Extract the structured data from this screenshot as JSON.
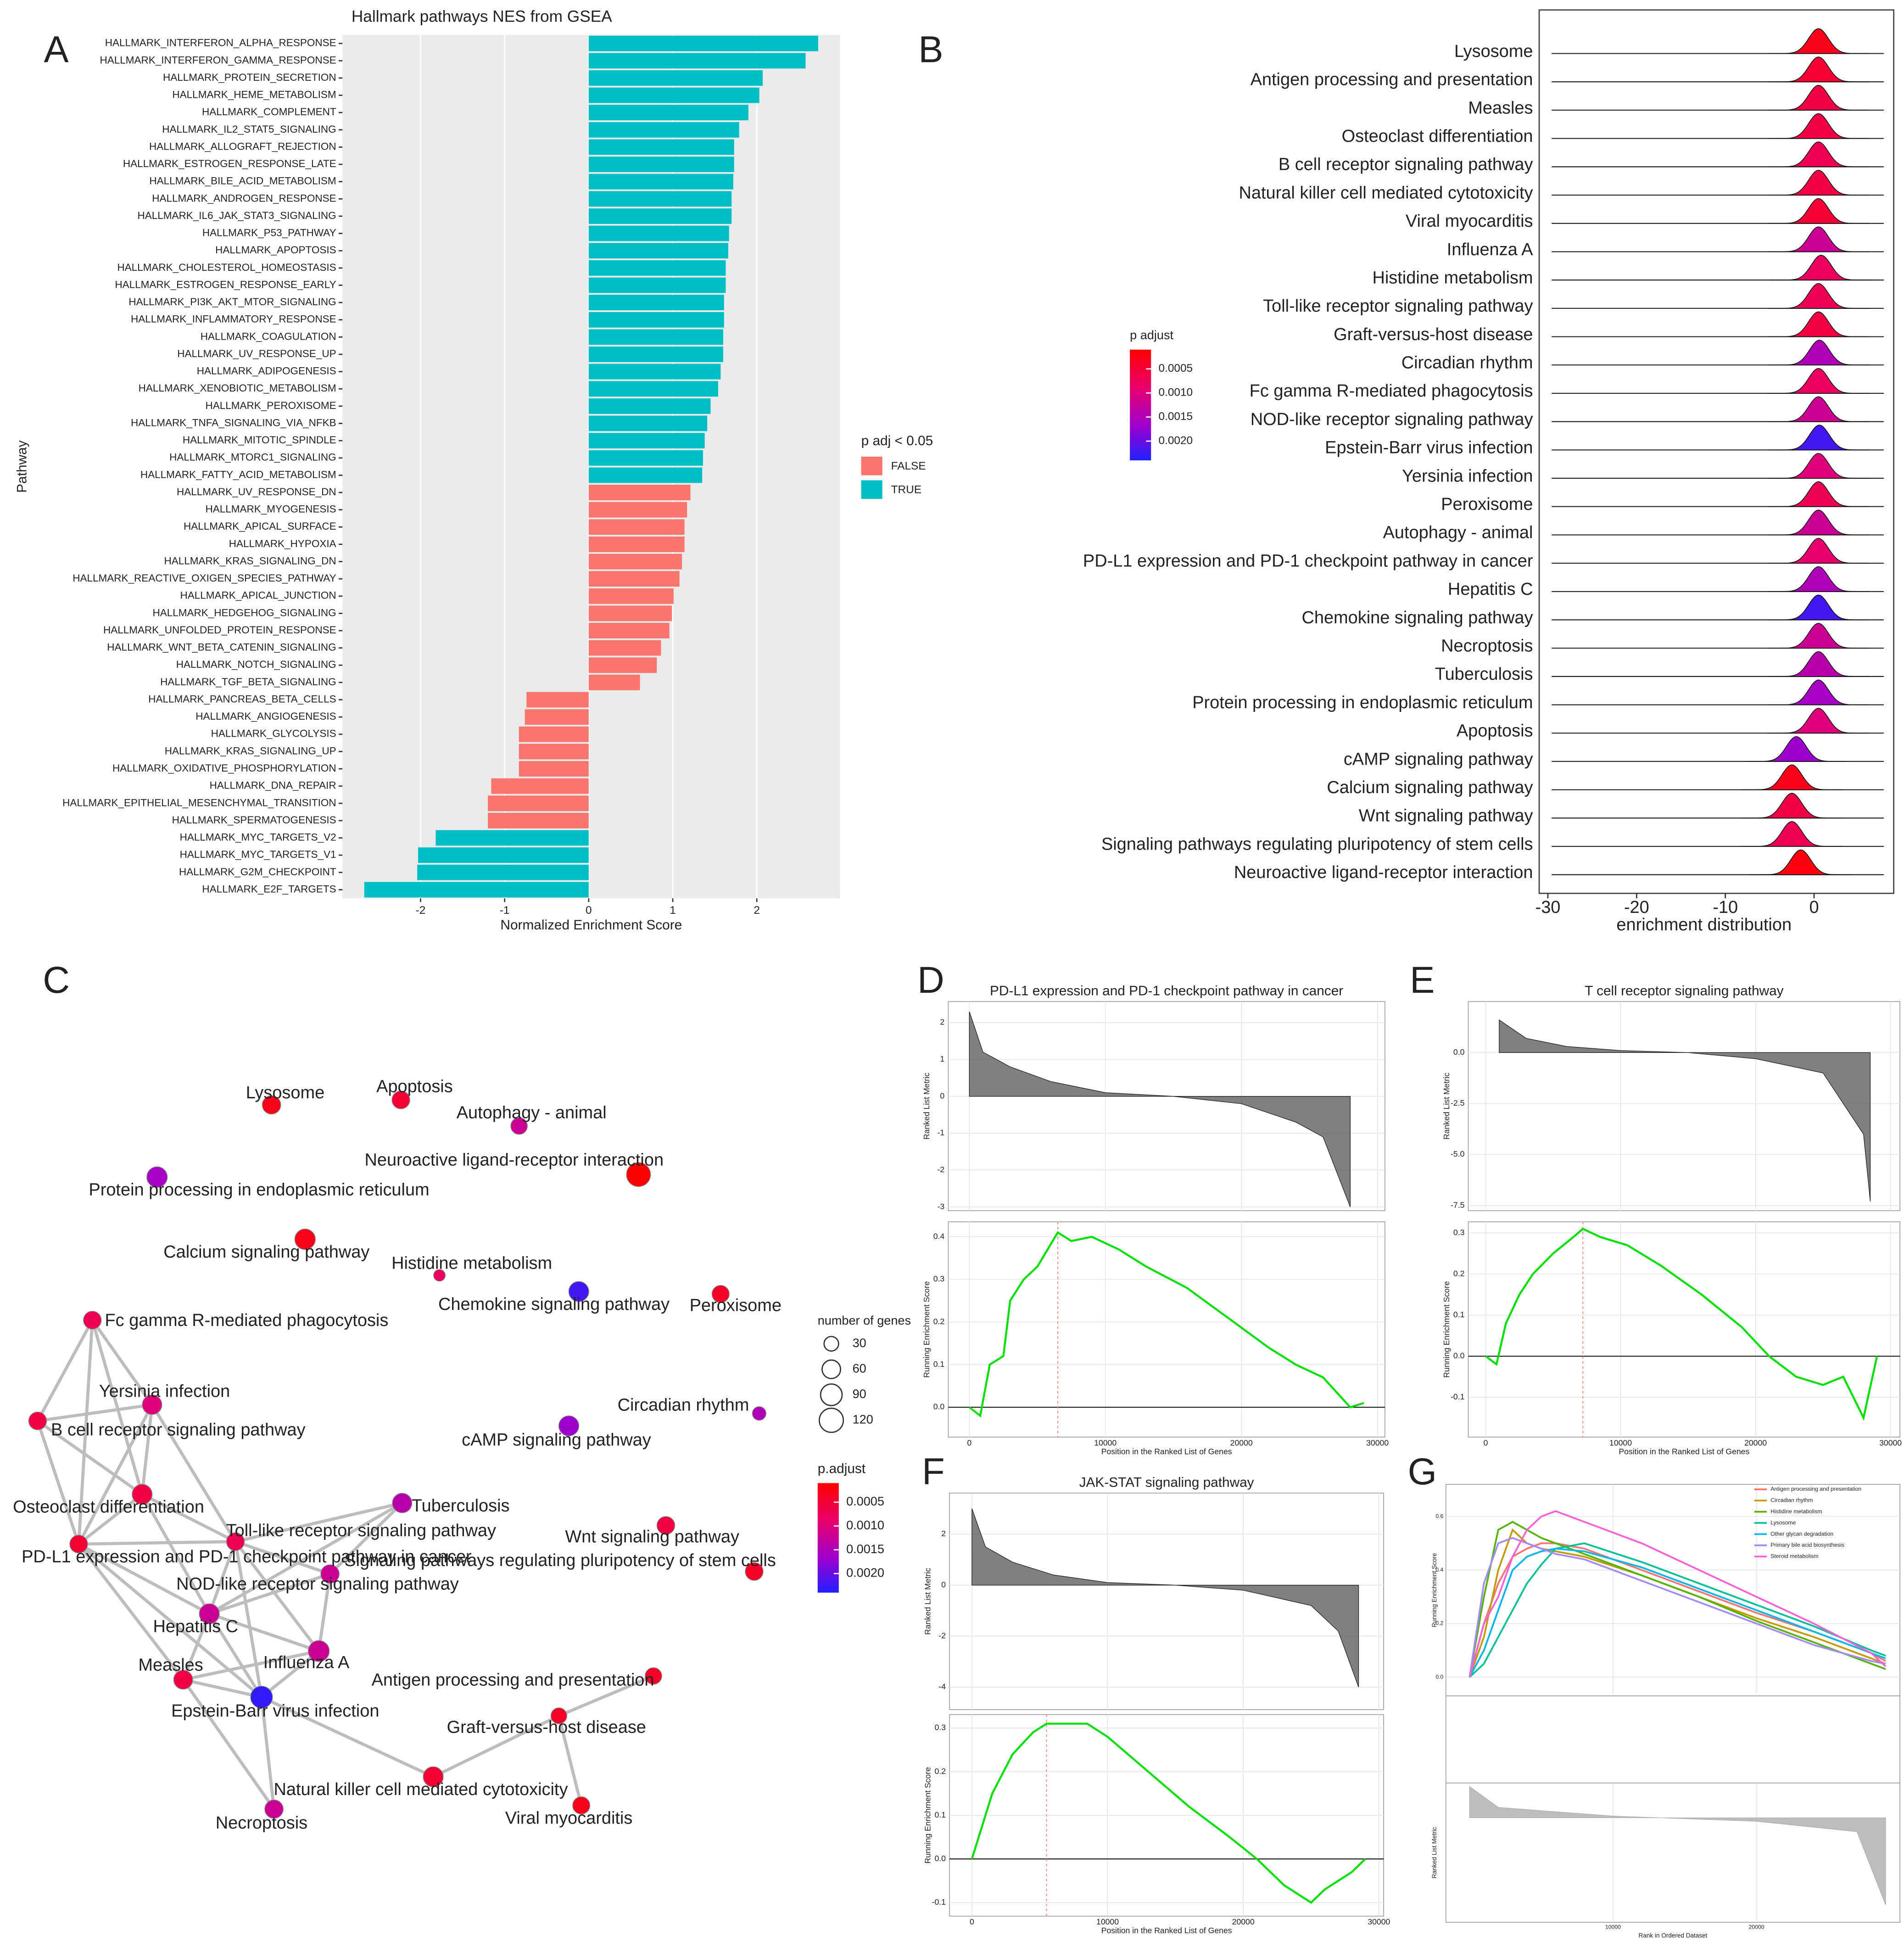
{
  "chart_data": [
    {
      "type": "bar",
      "panel": "A",
      "title": "Hallmark pathways NES from GSEA",
      "xlabel": "Normalized Enrichment Score",
      "ylabel": "Pathway",
      "legend_title": "p adj < 0.05",
      "legend": "right",
      "grid": true,
      "categories": [
        "HALLMARK_INTERFERON_ALPHA_RESPONSE",
        "HALLMARK_INTERFERON_GAMMA_RESPONSE",
        "HALLMARK_PROTEIN_SECRETION",
        "HALLMARK_HEME_METABOLISM",
        "HALLMARK_COMPLEMENT",
        "HALLMARK_IL2_STAT5_SIGNALING",
        "HALLMARK_ALLOGRAFT_REJECTION",
        "HALLMARK_ESTROGEN_RESPONSE_LATE",
        "HALLMARK_BILE_ACID_METABOLISM",
        "HALLMARK_ANDROGEN_RESPONSE",
        "HALLMARK_IL6_JAK_STAT3_SIGNALING",
        "HALLMARK_P53_PATHWAY",
        "HALLMARK_APOPTOSIS",
        "HALLMARK_CHOLESTEROL_HOMEOSTASIS",
        "HALLMARK_ESTROGEN_RESPONSE_EARLY",
        "HALLMARK_PI3K_AKT_MTOR_SIGNALING",
        "HALLMARK_INFLAMMATORY_RESPONSE",
        "HALLMARK_COAGULATION",
        "HALLMARK_UV_RESPONSE_UP",
        "HALLMARK_ADIPOGENESIS",
        "HALLMARK_XENOBIOTIC_METABOLISM",
        "HALLMARK_PEROXISOME",
        "HALLMARK_TNFA_SIGNALING_VIA_NFKB",
        "HALLMARK_MITOTIC_SPINDLE",
        "HALLMARK_MTORC1_SIGNALING",
        "HALLMARK_FATTY_ACID_METABOLISM",
        "HALLMARK_UV_RESPONSE_DN",
        "HALLMARK_MYOGENESIS",
        "HALLMARK_APICAL_SURFACE",
        "HALLMARK_HYPOXIA",
        "HALLMARK_KRAS_SIGNALING_DN",
        "HALLMARK_REACTIVE_OXIGEN_SPECIES_PATHWAY",
        "HALLMARK_APICAL_JUNCTION",
        "HALLMARK_HEDGEHOG_SIGNALING",
        "HALLMARK_UNFOLDED_PROTEIN_RESPONSE",
        "HALLMARK_WNT_BETA_CATENIN_SIGNALING",
        "HALLMARK_NOTCH_SIGNALING",
        "HALLMARK_TGF_BETA_SIGNALING",
        "HALLMARK_PANCREAS_BETA_CELLS",
        "HALLMARK_ANGIOGENESIS",
        "HALLMARK_GLYCOLYSIS",
        "HALLMARK_KRAS_SIGNALING_UP",
        "HALLMARK_OXIDATIVE_PHOSPHORYLATION",
        "HALLMARK_DNA_REPAIR",
        "HALLMARK_EPITHELIAL_MESENCHYMAL_TRANSITION",
        "HALLMARK_SPERMATOGENESIS",
        "HALLMARK_MYC_TARGETS_V2",
        "HALLMARK_MYC_TARGETS_V1",
        "HALLMARK_G2M_CHECKPOINT",
        "HALLMARK_E2F_TARGETS"
      ],
      "series": [
        {
          "name": "FALSE",
          "color": "#f8766d",
          "values": [
            null,
            null,
            null,
            null,
            null,
            null,
            null,
            null,
            null,
            null,
            null,
            null,
            null,
            null,
            null,
            null,
            null,
            null,
            null,
            null,
            null,
            null,
            null,
            null,
            null,
            null,
            1.21,
            1.17,
            1.14,
            1.14,
            1.11,
            1.08,
            1.01,
            0.99,
            0.96,
            0.86,
            0.81,
            0.61,
            -0.74,
            -0.76,
            -0.83,
            -0.83,
            -0.83,
            -1.16,
            -1.2,
            -1.2,
            null,
            null,
            null,
            null
          ]
        },
        {
          "name": "TRUE",
          "color": "#00bfc4",
          "values": [
            2.73,
            2.58,
            2.07,
            2.03,
            1.9,
            1.79,
            1.73,
            1.73,
            1.72,
            1.7,
            1.7,
            1.67,
            1.66,
            1.63,
            1.63,
            1.61,
            1.61,
            1.6,
            1.6,
            1.57,
            1.54,
            1.45,
            1.41,
            1.38,
            1.36,
            1.35,
            null,
            null,
            null,
            null,
            null,
            null,
            null,
            null,
            null,
            null,
            null,
            null,
            null,
            null,
            null,
            null,
            null,
            null,
            null,
            null,
            -1.82,
            -2.03,
            -2.04,
            -2.67
          ]
        }
      ],
      "xlim": [
        -2.93,
        2.99
      ],
      "xticks": [
        -2,
        -1,
        0,
        1,
        2
      ]
    },
    {
      "type": "ridge",
      "panel": "B",
      "xlabel": "enrichment distribution",
      "colorbar_title": "p adjust",
      "categories": [
        "Lysosome",
        "Antigen processing and presentation",
        "Measles",
        "Osteoclast differentiation",
        "B cell receptor signaling pathway",
        "Natural killer cell mediated cytotoxicity",
        "Viral myocarditis",
        "Influenza A",
        "Histidine metabolism",
        "Toll-like receptor signaling pathway",
        "Graft-versus-host disease",
        "Circadian rhythm",
        "Fc gamma R-mediated phagocytosis",
        "NOD-like receptor signaling pathway",
        "Epstein-Barr virus infection",
        "Yersinia infection",
        "Peroxisome",
        "Autophagy - animal",
        "PD-L1 expression and PD-1 checkpoint pathway in cancer",
        "Hepatitis C",
        "Chemokine signaling pathway",
        "Necroptosis",
        "Tuberculosis",
        "Protein processing in endoplasmic reticulum",
        "Apoptosis",
        "cAMP signaling pathway",
        "Calcium signaling pathway",
        "Wnt signaling pathway",
        "Signaling pathways regulating pluripotency of stem cells",
        "Neuroactive ligand-receptor interaction"
      ],
      "values": [
        0.5,
        0.5,
        0.5,
        0.5,
        0.5,
        0.5,
        0.5,
        0.5,
        0.8,
        0.5,
        0.5,
        0.6,
        0.5,
        0.5,
        0.6,
        0.5,
        0.5,
        0.5,
        0.5,
        0.5,
        0.5,
        0.5,
        0.5,
        0.5,
        0.5,
        -2,
        -2.5,
        -2.5,
        -2.5,
        -1.5
      ],
      "p_adjust": [
        0.0003,
        0.0005,
        0.0006,
        0.0006,
        0.0007,
        0.0006,
        0.0005,
        0.0012,
        0.0008,
        0.0007,
        0.0006,
        0.0015,
        0.0008,
        0.0012,
        0.0022,
        0.001,
        0.0007,
        0.0012,
        0.0009,
        0.0015,
        0.0022,
        0.0012,
        0.0014,
        0.0016,
        0.001,
        0.0017,
        0.0003,
        0.0006,
        0.0007,
        0.0002
      ],
      "xlim": [
        -30.98,
        8.98
      ],
      "xticks": [
        -30,
        -20,
        -10,
        0
      ],
      "clim": [
        0.0001,
        0.0024
      ],
      "cticks": [
        0.0005,
        {
          "value": 0.001,
          "label": "0.0010"
        },
        0.0015,
        {
          "value": 0.002,
          "label": "0.0020"
        }
      ]
    },
    {
      "type": "network",
      "panel": "C",
      "size_legend_title": "number of genes",
      "size_ticks": [
        30,
        60,
        90,
        120
      ],
      "colorbar_title": "p.adjust",
      "clim": [
        0.0001,
        0.0024
      ],
      "cticks": [
        0.0005,
        {
          "value": 0.001,
          "label": "0.0010"
        },
        0.0015,
        {
          "value": 0.002,
          "label": "0.0020"
        }
      ],
      "nodes": [
        {
          "label": "Lysosome",
          "size": 60,
          "p_adjust": 0.0003
        },
        {
          "label": "Apoptosis",
          "size": 55,
          "p_adjust": 0.0005
        },
        {
          "label": "Autophagy - animal",
          "size": 45,
          "p_adjust": 0.0012
        },
        {
          "label": "Neuroactive ligand-receptor interaction",
          "size": 120,
          "p_adjust": 0.0001
        },
        {
          "label": "Protein processing in endoplasmic reticulum",
          "size": 80,
          "p_adjust": 0.0016
        },
        {
          "label": "Calcium signaling pathway",
          "size": 80,
          "p_adjust": 0.0003
        },
        {
          "label": "Histidine metabolism",
          "size": 15,
          "p_adjust": 0.0008
        },
        {
          "label": "Chemokine signaling pathway",
          "size": 75,
          "p_adjust": 0.0022
        },
        {
          "label": "Peroxisome",
          "size": 50,
          "p_adjust": 0.0004
        },
        {
          "label": "Fc gamma R-mediated phagocytosis",
          "size": 55,
          "p_adjust": 0.0007
        },
        {
          "label": "Yersinia infection",
          "size": 70,
          "p_adjust": 0.001
        },
        {
          "label": "B cell receptor signaling pathway",
          "size": 55,
          "p_adjust": 0.0006
        },
        {
          "label": "Circadian rhythm",
          "size": 25,
          "p_adjust": 0.0015
        },
        {
          "label": "cAMP signaling pathway",
          "size": 75,
          "p_adjust": 0.0017
        },
        {
          "label": "Osteoclast differentiation",
          "size": 75,
          "p_adjust": 0.0006
        },
        {
          "label": "Tuberculosis",
          "size": 70,
          "p_adjust": 0.0014
        },
        {
          "label": "Toll-like receptor signaling pathway",
          "size": 55,
          "p_adjust": 0.0007
        },
        {
          "label": "Wnt signaling pathway",
          "size": 55,
          "p_adjust": 0.0006
        },
        {
          "label": "PD-L1 expression and PD-1 checkpoint pathway in cancer",
          "size": 55,
          "p_adjust": 0.0005
        },
        {
          "label": "Signaling pathways regulating pluripotency of stem cells",
          "size": 55,
          "p_adjust": 0.0004
        },
        {
          "label": "NOD-like receptor signaling pathway",
          "size": 60,
          "p_adjust": 0.0012
        },
        {
          "label": "Hepatitis C",
          "size": 75,
          "p_adjust": 0.0012
        },
        {
          "label": "Measles",
          "size": 65,
          "p_adjust": 0.0006
        },
        {
          "label": "Influenza A",
          "size": 85,
          "p_adjust": 0.0012
        },
        {
          "label": "Antigen processing and presentation",
          "size": 45,
          "p_adjust": 0.0004
        },
        {
          "label": "Epstein-Barr virus infection",
          "size": 95,
          "p_adjust": 0.0023
        },
        {
          "label": "Graft-versus-host disease",
          "size": 40,
          "p_adjust": 0.0004
        },
        {
          "label": "Natural killer cell mediated cytotoxicity",
          "size": 75,
          "p_adjust": 0.0005
        },
        {
          "label": "Necroptosis",
          "size": 60,
          "p_adjust": 0.0012
        },
        {
          "label": "Viral myocarditis",
          "size": 50,
          "p_adjust": 0.0003
        }
      ]
    },
    {
      "type": "gsea",
      "panel": "D",
      "title": "PD-L1 expression and PD-1 checkpoint pathway in cancer",
      "metric_label": "Ranked List Metric",
      "ylabel": "Running Enrichment Score",
      "xlabel": "Position in the Ranked List of Genes",
      "x": [
        0,
        800,
        1500,
        2500,
        3000,
        4000,
        5000,
        6500,
        7500,
        9000,
        11000,
        13000,
        16000,
        19000,
        22000,
        24000,
        26000,
        28000,
        29000
      ],
      "values": [
        0,
        -0.02,
        0.1,
        0.12,
        0.25,
        0.3,
        0.33,
        0.41,
        0.39,
        0.4,
        0.37,
        0.33,
        0.28,
        0.21,
        0.14,
        0.1,
        0.07,
        0,
        0.01
      ],
      "metric_x": [
        0,
        1000,
        3000,
        6000,
        10000,
        15000,
        20000,
        24000,
        26000,
        28000
      ],
      "metric_values": [
        2.3,
        1.2,
        0.8,
        0.4,
        0.1,
        0,
        -0.2,
        -0.7,
        -1.1,
        -3
      ],
      "xlim": [
        -1550,
        30550
      ],
      "xticks": [
        0,
        10000,
        20000,
        30000
      ],
      "ylim": [
        -0.07,
        0.435
      ],
      "yticks": [
        {
          "value": 0,
          "label": "0.0"
        },
        0.1,
        0.2,
        0.3,
        0.4
      ],
      "metric_ylim": [
        -3.1,
        2.57
      ],
      "metric_yticks": [
        -3,
        -2,
        -1,
        0,
        1,
        2
      ],
      "color": "#00e000"
    },
    {
      "type": "gsea",
      "panel": "E",
      "title": "T cell receptor signaling pathway",
      "metric_label": "Ranked List Metric",
      "ylabel": "Running Enrichment Score",
      "xlabel": "Position in the Ranked List of Genes",
      "x": [
        0,
        800,
        1500,
        2500,
        3500,
        5000,
        6500,
        7200,
        8500,
        10500,
        13000,
        16000,
        19000,
        21000,
        23000,
        25000,
        26500,
        28000,
        29000
      ],
      "values": [
        0,
        -0.02,
        0.08,
        0.15,
        0.2,
        0.25,
        0.29,
        0.31,
        0.29,
        0.27,
        0.22,
        0.15,
        0.07,
        0,
        -0.05,
        -0.07,
        -0.05,
        -0.15,
        0
      ],
      "metric_x": [
        1000,
        3000,
        6000,
        10000,
        15000,
        20000,
        25000,
        28000,
        28500
      ],
      "metric_values": [
        1.6,
        0.7,
        0.3,
        0.1,
        0,
        -0.3,
        -1,
        -4,
        -7.3
      ],
      "xlim": [
        -1290,
        30700
      ],
      "xticks": [
        0,
        10000,
        20000,
        30000
      ],
      "ylim": [
        -0.197,
        0.327
      ],
      "yticks": [
        -0.1,
        {
          "value": 0,
          "label": "0.0"
        },
        0.1,
        0.2,
        0.3
      ],
      "metric_ylim": [
        -7.75,
        2.5
      ],
      "metric_yticks": [
        {
          "value": -7.5,
          "label": "-7.5"
        },
        {
          "value": -5,
          "label": "-5.0"
        },
        {
          "value": -2.5,
          "label": "-2.5"
        },
        {
          "value": 0,
          "label": "0.0"
        }
      ],
      "color": "#00e000"
    },
    {
      "type": "gsea",
      "panel": "F",
      "title": "JAK-STAT signaling pathway",
      "metric_label": "Ranked List Metric",
      "ylabel": "Running Enrichment Score",
      "xlabel": "Position in the Ranked List of Genes",
      "x": [
        0,
        500,
        1500,
        3000,
        4500,
        5500,
        7000,
        8500,
        10000,
        13000,
        16000,
        19000,
        21000,
        23000,
        25000,
        26000,
        28000,
        29000
      ],
      "values": [
        0,
        0.05,
        0.15,
        0.24,
        0.29,
        0.31,
        0.31,
        0.31,
        0.28,
        0.2,
        0.12,
        0.05,
        0,
        -0.06,
        -0.1,
        -0.07,
        -0.03,
        0
      ],
      "metric_x": [
        0,
        1000,
        3000,
        6000,
        10000,
        15000,
        20000,
        25000,
        27000,
        28500
      ],
      "metric_values": [
        3,
        1.5,
        0.9,
        0.4,
        0.1,
        0,
        -0.2,
        -0.8,
        -1.8,
        -4
      ],
      "xlim": [
        -1650,
        30350
      ],
      "xticks": [
        0,
        10000,
        20000,
        30000
      ],
      "ylim": [
        -0.131,
        0.331
      ],
      "yticks": [
        -0.1,
        {
          "value": 0,
          "label": "0.0"
        },
        0.1,
        0.2,
        0.3
      ],
      "metric_ylim": [
        -4.88,
        3.61
      ],
      "metric_yticks": [
        -4,
        -2,
        0,
        2
      ],
      "color": "#00e000"
    },
    {
      "type": "gsea_multi",
      "panel": "G",
      "ylabel": "Running Enrichment Score",
      "metric_label": "Ranked List Metric",
      "xlabel": "Rank in Ordered Dataset",
      "legend": "top-right",
      "x": [
        0,
        1000,
        2000,
        3000,
        4000,
        5000,
        6000,
        8000,
        12000,
        16000,
        20000,
        24000,
        28000,
        29000
      ],
      "series": [
        {
          "name": "Antigen processing and presentation",
          "color": "#f8766d",
          "values": [
            0,
            0.2,
            0.35,
            0.45,
            0.48,
            0.5,
            0.5,
            0.48,
            0.4,
            0.32,
            0.24,
            0.17,
            0.09,
            0.06
          ]
        },
        {
          "name": "Circadian rhythm",
          "color": "#c49a00",
          "values": [
            0,
            0.15,
            0.4,
            0.55,
            0.5,
            0.48,
            0.47,
            0.45,
            0.38,
            0.3,
            0.22,
            0.15,
            0.07,
            0.05
          ]
        },
        {
          "name": "Histidine metabolism",
          "color": "#53b400",
          "values": [
            0,
            0.3,
            0.55,
            0.58,
            0.55,
            0.52,
            0.5,
            0.46,
            0.38,
            0.3,
            0.21,
            0.13,
            0.05,
            0.03
          ]
        },
        {
          "name": "Lysosome",
          "color": "#00c094",
          "values": [
            0,
            0.05,
            0.15,
            0.25,
            0.35,
            0.42,
            0.48,
            0.5,
            0.43,
            0.35,
            0.27,
            0.19,
            0.1,
            0.08
          ]
        },
        {
          "name": "Other glycan degradation",
          "color": "#00b6eb",
          "values": [
            0,
            0.1,
            0.25,
            0.4,
            0.45,
            0.47,
            0.48,
            0.47,
            0.41,
            0.33,
            0.25,
            0.17,
            0.09,
            0.07
          ]
        },
        {
          "name": "Primary bile acid biosynthesis",
          "color": "#a58aff",
          "values": [
            0,
            0.35,
            0.5,
            0.52,
            0.5,
            0.48,
            0.46,
            0.44,
            0.36,
            0.28,
            0.2,
            0.12,
            0.06,
            0.05
          ]
        },
        {
          "name": "Steroid metabolism",
          "color": "#fb61d7",
          "values": [
            0,
            0.2,
            0.3,
            0.45,
            0.55,
            0.6,
            0.62,
            0.58,
            0.5,
            0.4,
            0.3,
            0.2,
            0.09,
            0.04
          ]
        }
      ],
      "metric_x": [
        0,
        2000,
        10000,
        20000,
        27000,
        29000
      ],
      "metric_values": [
        1.8,
        0.6,
        0.1,
        -0.2,
        -0.8,
        -5
      ],
      "xlim": [
        -1650,
        30000
      ],
      "xticks": [
        10000,
        20000
      ],
      "ylim": [
        -0.07,
        0.72
      ],
      "yticks": [
        {
          "value": 0,
          "label": "0.0"
        },
        0.2,
        0.4,
        0.6
      ],
      "metric_ylim": [
        -6,
        2
      ]
    }
  ]
}
